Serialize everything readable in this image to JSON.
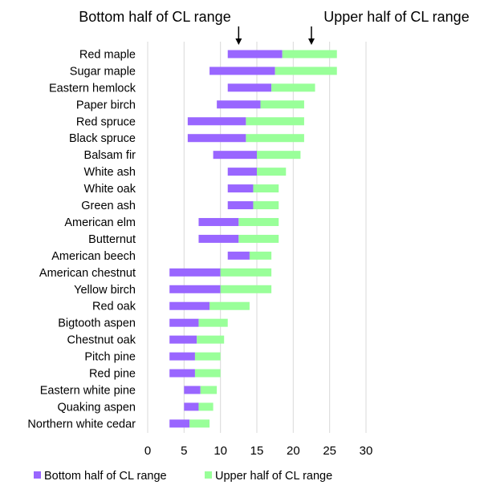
{
  "chart_data": {
    "type": "bar",
    "orientation": "horizontal",
    "stacked": true,
    "categories": [
      "Red maple",
      "Sugar maple",
      "Eastern hemlock",
      "Paper birch",
      "Red spruce",
      "Black spruce",
      "Balsam fir",
      "White ash",
      "White oak",
      "Green ash",
      "American elm",
      "Butternut",
      "American beech",
      "American chestnut",
      "Yellow birch",
      "Red oak",
      "Bigtooth aspen",
      "Chestnut oak",
      "Pitch pine",
      "Red pine",
      "Eastern white pine",
      "Quaking aspen",
      "Northern white cedar"
    ],
    "range_start": [
      11,
      8.5,
      11,
      9.5,
      5.5,
      5.5,
      9,
      11,
      11,
      11,
      7,
      7,
      11,
      3,
      3,
      3,
      3,
      3,
      3,
      3,
      5,
      5,
      3
    ],
    "series": [
      {
        "name": "Bottom half of CL range",
        "color": "#9966ff",
        "values": [
          7.5,
          9,
          6,
          6,
          8,
          8,
          6,
          4,
          3.5,
          3.5,
          5.5,
          5.5,
          3,
          7,
          7,
          5.5,
          4,
          3.75,
          3.5,
          3.5,
          2.25,
          2,
          2.75
        ]
      },
      {
        "name": "Upper half of CL range",
        "color": "#99ff99",
        "values": [
          7.5,
          8.5,
          6,
          6,
          8,
          8,
          6,
          4,
          3.5,
          3.5,
          5.5,
          5.5,
          3,
          7,
          7,
          5.5,
          4,
          3.75,
          3.5,
          3.5,
          2.25,
          2,
          2.75
        ]
      }
    ],
    "xlim": [
      0,
      30
    ],
    "xticks": [
      0,
      5,
      10,
      15,
      20,
      25,
      30
    ],
    "grid": "vertical",
    "legend": "bottom",
    "annotations": [
      {
        "text": "Bottom half of CL range",
        "x": 12.5
      },
      {
        "text": "Upper half of CL range",
        "x": 22.5
      }
    ]
  }
}
